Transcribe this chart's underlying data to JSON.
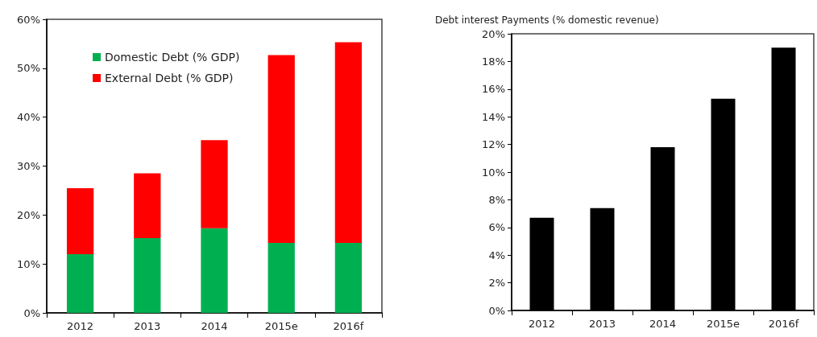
{
  "chart_data": [
    {
      "type": "bar",
      "stacked": true,
      "categories": [
        "2012",
        "2013",
        "2014",
        "2015e",
        "2016f"
      ],
      "series": [
        {
          "name": "Domestic Debt (% GDP)",
          "color": "#00b050",
          "values": [
            12.0,
            15.3,
            17.3,
            14.3,
            14.3
          ]
        },
        {
          "name": "External Debt (% GDP)",
          "color": "#ff0000",
          "values": [
            13.5,
            13.2,
            18.0,
            38.4,
            41.0
          ]
        }
      ],
      "ylim": [
        0,
        60
      ],
      "yticks": [
        {
          "value": 0,
          "label": "0%"
        },
        {
          "value": 10,
          "label": "10%"
        },
        {
          "value": 20,
          "label": "20%"
        },
        {
          "value": 30,
          "label": "30%"
        },
        {
          "value": 40,
          "label": "40%"
        },
        {
          "value": 50,
          "label": "50%"
        },
        {
          "value": 60,
          "label": "60%"
        }
      ],
      "grid": false,
      "legend": "top left"
    },
    {
      "type": "bar",
      "title": "Debt interest Payments (% domestic revenue)",
      "categories": [
        "2012",
        "2013",
        "2014",
        "2015e",
        "2016f"
      ],
      "series": [
        {
          "color": "#000000",
          "values": [
            6.7,
            7.4,
            11.8,
            15.3,
            19.0
          ]
        }
      ],
      "ylim": [
        0,
        20
      ],
      "yticks": [
        {
          "value": 0,
          "label": "0%"
        },
        {
          "value": 2,
          "label": "2%"
        },
        {
          "value": 4,
          "label": "4%"
        },
        {
          "value": 6,
          "label": "6%"
        },
        {
          "value": 8,
          "label": "8%"
        },
        {
          "value": 10,
          "label": "10%"
        },
        {
          "value": 12,
          "label": "12%"
        },
        {
          "value": 14,
          "label": "14%"
        },
        {
          "value": 16,
          "label": "16%"
        },
        {
          "value": 18,
          "label": "18%"
        },
        {
          "value": 20,
          "label": "20%"
        }
      ],
      "grid": false
    }
  ]
}
